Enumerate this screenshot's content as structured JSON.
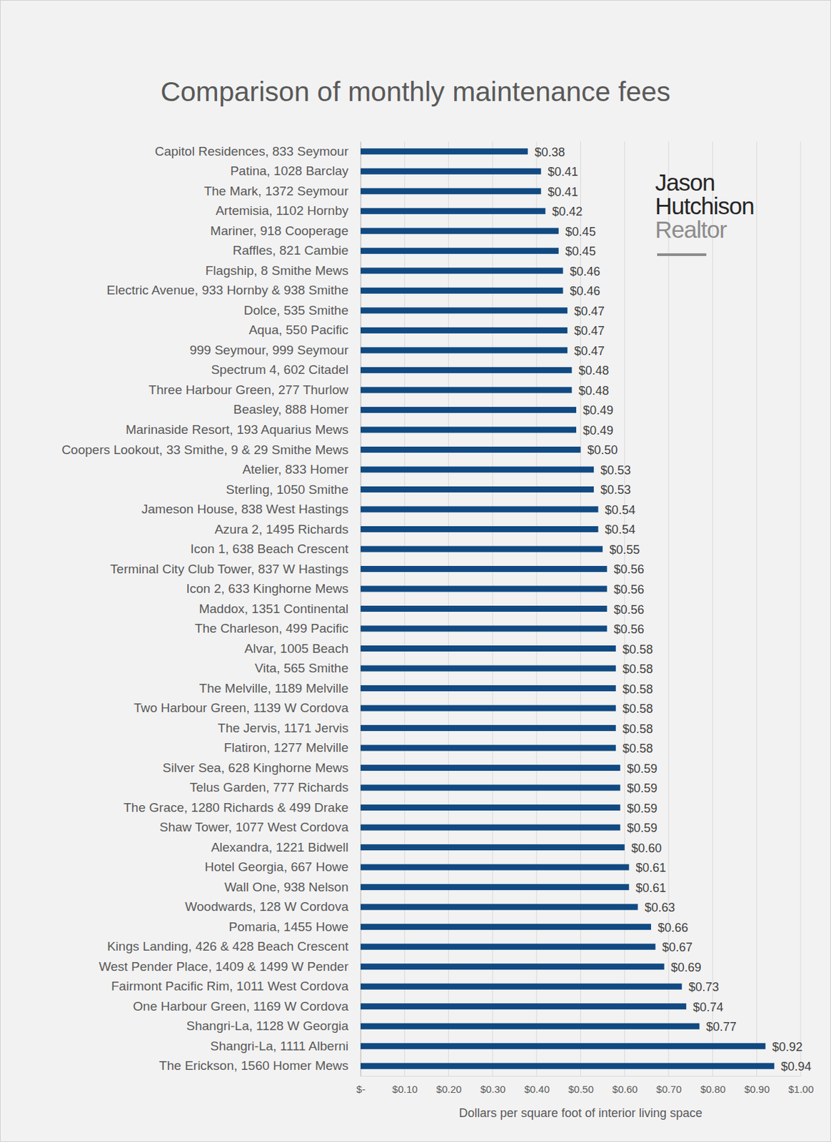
{
  "chart_data": {
    "type": "bar",
    "orientation": "horizontal",
    "title": "Comparison of monthly maintenance fees",
    "xlabel": "Dollars per square foot of interior living space",
    "annotations": [
      "Jason",
      "Hutchison",
      "Realtor"
    ],
    "categories": [
      "Capitol Residences, 833 Seymour",
      "Patina, 1028 Barclay",
      "The Mark, 1372 Seymour",
      "Artemisia, 1102 Hornby",
      "Mariner, 918 Cooperage",
      "Raffles, 821 Cambie",
      "Flagship, 8 Smithe Mews",
      "Electric Avenue, 933 Hornby & 938 Smithe",
      "Dolce, 535 Smithe",
      "Aqua, 550 Pacific",
      "999 Seymour, 999 Seymour",
      "Spectrum 4, 602 Citadel",
      "Three Harbour Green, 277 Thurlow",
      "Beasley, 888 Homer",
      "Marinaside Resort, 193 Aquarius Mews",
      "Coopers Lookout, 33 Smithe, 9 & 29 Smithe Mews",
      "Atelier, 833 Homer",
      "Sterling, 1050 Smithe",
      "Jameson House, 838 West Hastings",
      "Azura 2, 1495 Richards",
      "Icon 1, 638 Beach Crescent",
      "Terminal City Club Tower, 837 W Hastings",
      "Icon 2, 633 Kinghorne Mews",
      "Maddox, 1351 Continental",
      "The Charleson, 499 Pacific",
      "Alvar, 1005 Beach",
      "Vita, 565 Smithe",
      "The Melville, 1189 Melville",
      "Two Harbour Green, 1139 W Cordova",
      "The Jervis, 1171 Jervis",
      "Flatiron, 1277 Melville",
      "Silver Sea, 628 Kinghorne Mews",
      "Telus Garden, 777 Richards",
      "The Grace, 1280 Richards & 499 Drake",
      "Shaw Tower, 1077 West Cordova",
      "Alexandra, 1221 Bidwell",
      "Hotel Georgia, 667 Howe",
      "Wall One, 938 Nelson",
      "Woodwards, 128 W Cordova",
      "Pomaria, 1455 Howe",
      "Kings Landing, 426 & 428 Beach Crescent",
      "West Pender Place, 1409 & 1499 W Pender",
      "Fairmont Pacific Rim, 1011 West Cordova",
      "One Harbour Green, 1169 W Cordova",
      "Shangri-La, 1128 W Georgia",
      "Shangri-La, 1111 Alberni",
      "The Erickson, 1560 Homer Mews"
    ],
    "values": [
      0.38,
      0.41,
      0.41,
      0.42,
      0.45,
      0.45,
      0.46,
      0.46,
      0.47,
      0.47,
      0.47,
      0.48,
      0.48,
      0.49,
      0.49,
      0.5,
      0.53,
      0.53,
      0.54,
      0.54,
      0.55,
      0.56,
      0.56,
      0.56,
      0.56,
      0.58,
      0.58,
      0.58,
      0.58,
      0.58,
      0.58,
      0.59,
      0.59,
      0.59,
      0.59,
      0.6,
      0.61,
      0.61,
      0.63,
      0.66,
      0.67,
      0.69,
      0.73,
      0.74,
      0.77,
      0.92,
      0.94
    ],
    "value_labels": [
      "$0.38",
      "$0.41",
      "$0.41",
      "$0.42",
      "$0.45",
      "$0.45",
      "$0.46",
      "$0.46",
      "$0.47",
      "$0.47",
      "$0.47",
      "$0.48",
      "$0.48",
      "$0.49",
      "$0.49",
      "$0.50",
      "$0.53",
      "$0.53",
      "$0.54",
      "$0.54",
      "$0.55",
      "$0.56",
      "$0.56",
      "$0.56",
      "$0.56",
      "$0.58",
      "$0.58",
      "$0.58",
      "$0.58",
      "$0.58",
      "$0.58",
      "$0.59",
      "$0.59",
      "$0.59",
      "$0.59",
      "$0.60",
      "$0.61",
      "$0.61",
      "$0.63",
      "$0.66",
      "$0.67",
      "$0.69",
      "$0.73",
      "$0.74",
      "$0.77",
      "$0.92",
      "$0.94"
    ],
    "data_labels": true,
    "color": "#114a82",
    "xlim": [
      0,
      1.0
    ],
    "xticks": [
      {
        "value": 0,
        "label": "$-"
      },
      {
        "value": 0.1,
        "label": "$0.10"
      },
      {
        "value": 0.2,
        "label": "$0.20"
      },
      {
        "value": 0.3,
        "label": "$0.30"
      },
      {
        "value": 0.4,
        "label": "$0.40"
      },
      {
        "value": 0.5,
        "label": "$0.50"
      },
      {
        "value": 0.6,
        "label": "$0.60"
      },
      {
        "value": 0.7,
        "label": "$0.70"
      },
      {
        "value": 0.8,
        "label": "$0.80"
      },
      {
        "value": 0.9,
        "label": "$0.90"
      },
      {
        "value": 1.0,
        "label": "$1.00"
      }
    ],
    "grid": true
  }
}
